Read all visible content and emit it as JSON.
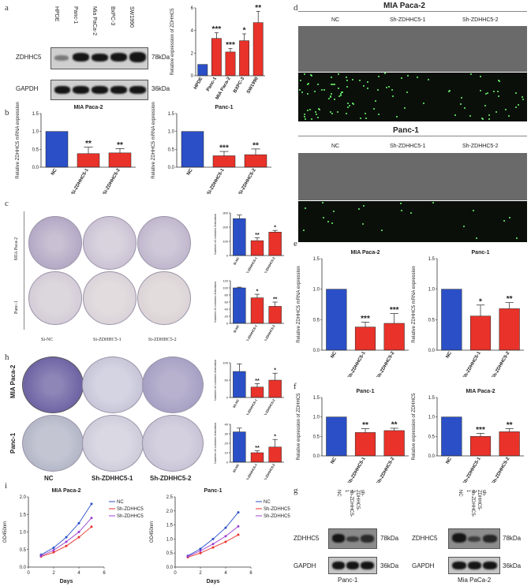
{
  "panels": {
    "a": "a",
    "b": "b",
    "c": "c",
    "d": "d",
    "e": "e",
    "f": "f",
    "g": "g",
    "h": "h",
    "i": "i"
  },
  "a": {
    "lanes": [
      "HPDE",
      "Panc-1",
      "Mia PaCa-2",
      "BxPC-3",
      "SW1990"
    ],
    "target": "ZDHHC5",
    "target_kda": "78kDa",
    "loading": "GAPDH",
    "loading_kda": "36kDa"
  },
  "d": {
    "mia_title": "MIA Paca-2",
    "panc_title": "Panc-1",
    "cols": [
      "NC",
      "Sh-ZDHHC5-1",
      "Sh-ZDHHC5-2"
    ]
  },
  "c": {
    "row1": "MIA Paca-2",
    "row2": "Panc-1",
    "cols": [
      "Si-NC",
      "Si-ZDHHC5-1",
      "Si-ZDHHC5-2"
    ]
  },
  "h": {
    "row1": "MIA Paca-2",
    "row2": "Panc-1",
    "cols": [
      "NC",
      "Sh-ZDHHC5-1",
      "Sh-ZDHHC5-2"
    ]
  },
  "g": {
    "left_lanes": [
      "NC",
      "sh-ZDHHC5-1",
      "sh-ZDHHC5-2"
    ],
    "right_lanes": [
      "NC",
      "sh-ZDHHC5-1",
      "sh-ZDHHC5-2"
    ],
    "target": "ZDHHC5",
    "target_kda": "78kDa",
    "loading": "GAPDH",
    "loading_kda": "36kDa",
    "left_caption": "Panc-1",
    "right_caption": "Mia PaCa-2"
  },
  "chart_data": [
    {
      "id": "a_bar",
      "type": "bar",
      "title": "",
      "ylabel": "Relative expression of ZDHHC5",
      "categories": [
        "HPDE",
        "Panc-1",
        "MIA Paca-2",
        "BXPC-3",
        "SW1990"
      ],
      "values": [
        1,
        3.3,
        2.1,
        3.1,
        4.7
      ],
      "errors": [
        0,
        0.5,
        0.3,
        0.6,
        1.0
      ],
      "sig": [
        "",
        "***",
        "***",
        "*",
        "**"
      ],
      "ylim": [
        0,
        6
      ],
      "yticks": [
        "0",
        "2",
        "4",
        "6"
      ],
      "colors": [
        "#2a4fc7",
        "#e8322a",
        "#e8322a",
        "#e8322a",
        "#e8322a"
      ]
    },
    {
      "id": "b1",
      "type": "bar",
      "title": "MIA Paca-2",
      "ylabel": "Relative ZDHHC5 mRNA expression",
      "categories": [
        "NC",
        "Si-ZDHHC5-1",
        "Si-ZDHHC5-2"
      ],
      "values": [
        1,
        0.38,
        0.4
      ],
      "errors": [
        0,
        0.18,
        0.12
      ],
      "sig": [
        "",
        "**",
        "**"
      ],
      "ylim": [
        0,
        1.5
      ],
      "yticks": [
        "0.0",
        "0.5",
        "1.0",
        "1.5"
      ],
      "colors": [
        "#2a4fc7",
        "#e8322a",
        "#e8322a"
      ]
    },
    {
      "id": "b2",
      "type": "bar",
      "title": "Panc-1",
      "ylabel": "Relative ZDHHC5 mRNA expression",
      "categories": [
        "NC",
        "Si-ZDHHC5-1",
        "Si-ZDHHC5-2"
      ],
      "values": [
        1,
        0.32,
        0.35
      ],
      "errors": [
        0,
        0.12,
        0.16
      ],
      "sig": [
        "",
        "***",
        "**"
      ],
      "ylim": [
        0,
        1.5
      ],
      "yticks": [
        "0.0",
        "0.5",
        "1.0",
        "1.5"
      ],
      "colors": [
        "#2a4fc7",
        "#e8322a",
        "#e8322a"
      ]
    },
    {
      "id": "c1",
      "type": "bar",
      "title": "",
      "ylabel": "Number of colonies formation",
      "categories": [
        "Si-NC",
        "Si-ZDHHC5-1",
        "Si-ZDHHC5-2"
      ],
      "values": [
        260,
        105,
        165
      ],
      "errors": [
        25,
        20,
        12
      ],
      "sig": [
        "",
        "**",
        "*"
      ],
      "ylim": [
        0,
        300
      ],
      "yticks": [
        "0",
        "100",
        "200",
        "300"
      ],
      "colors": [
        "#2a4fc7",
        "#e8322a",
        "#e8322a"
      ]
    },
    {
      "id": "c2",
      "type": "bar",
      "title": "",
      "ylabel": "Number of colonies formation",
      "categories": [
        "Si-NC",
        "Si-ZDHHC5-1",
        "Si-ZDHHC5-2"
      ],
      "values": [
        100,
        72,
        48
      ],
      "errors": [
        2,
        10,
        12
      ],
      "sig": [
        "",
        "*",
        "**"
      ],
      "ylim": [
        0,
        120
      ],
      "yticks": [
        "0",
        "20",
        "40",
        "60",
        "80",
        "100",
        "120"
      ],
      "colors": [
        "#2a4fc7",
        "#e8322a",
        "#e8322a"
      ]
    },
    {
      "id": "h1",
      "type": "bar",
      "title": "",
      "ylabel": "Number of colonies formation",
      "categories": [
        "Sh-NC",
        "Sh-ZDHHC5-1",
        "Sh-ZDHHC5-2"
      ],
      "values": [
        75,
        30,
        50
      ],
      "errors": [
        22,
        10,
        20
      ],
      "sig": [
        "",
        "**",
        "*"
      ],
      "ylim": [
        0,
        100
      ],
      "yticks": [
        "0",
        "50",
        "100"
      ],
      "colors": [
        "#2a4fc7",
        "#e8322a",
        "#e8322a"
      ]
    },
    {
      "id": "h2",
      "type": "bar",
      "title": "",
      "ylabel": "Number of colonies formation",
      "categories": [
        "Sh-NC",
        "Sh-ZDHHC5-1",
        "Sh-ZDHHC5-2"
      ],
      "values": [
        32,
        10,
        16
      ],
      "errors": [
        4,
        2,
        8
      ],
      "sig": [
        "",
        "**",
        "*"
      ],
      "ylim": [
        0,
        40
      ],
      "yticks": [
        "0",
        "10",
        "20",
        "30",
        "40"
      ],
      "colors": [
        "#2a4fc7",
        "#e8322a",
        "#e8322a"
      ]
    },
    {
      "id": "e1",
      "type": "bar",
      "title": "MIA Paca-2",
      "ylabel": "Relative ZDHHC5 mRNA expression",
      "categories": [
        "NC",
        "Sh-ZDHHC5-1",
        "Sh-ZDHHC5-2"
      ],
      "values": [
        1,
        0.38,
        0.44
      ],
      "errors": [
        0,
        0.08,
        0.16
      ],
      "sig": [
        "",
        "***",
        "***"
      ],
      "ylim": [
        0,
        1.5
      ],
      "yticks": [
        "0.0",
        "0.5",
        "1.0",
        "1.5"
      ],
      "colors": [
        "#2a4fc7",
        "#e8322a",
        "#e8322a"
      ]
    },
    {
      "id": "e2",
      "type": "bar",
      "title": "Panc-1",
      "ylabel": "Relative ZDHHC5 mRNA expression",
      "categories": [
        "NC",
        "Sh-ZDHHC5-1",
        "Sh-ZDHHC5-2"
      ],
      "values": [
        1,
        0.56,
        0.68
      ],
      "errors": [
        0,
        0.18,
        0.1
      ],
      "sig": [
        "",
        "*",
        "**"
      ],
      "ylim": [
        0,
        1.5
      ],
      "yticks": [
        "0.0",
        "0.5",
        "1.0",
        "1.5"
      ],
      "colors": [
        "#2a4fc7",
        "#e8322a",
        "#e8322a"
      ]
    },
    {
      "id": "f1",
      "type": "bar",
      "title": "Panc-1",
      "ylabel": "Relative expression of ZDHHC5",
      "categories": [
        "NC",
        "Sh-ZDHHC5-1",
        "Sh-ZDHHC5-2"
      ],
      "values": [
        1,
        0.6,
        0.65
      ],
      "errors": [
        0,
        0.1,
        0.06
      ],
      "sig": [
        "",
        "**",
        "**"
      ],
      "ylim": [
        0,
        1.5
      ],
      "yticks": [
        "0.0",
        "0.5",
        "1.0",
        "1.5"
      ],
      "colors": [
        "#2a4fc7",
        "#e8322a",
        "#e8322a"
      ]
    },
    {
      "id": "f2",
      "type": "bar",
      "title": "MIA Paca-2",
      "ylabel": "Relative expression of ZDHHC5",
      "categories": [
        "NC",
        "Sh-ZDHHC5-1",
        "Sh-ZDHHC5-2"
      ],
      "values": [
        1,
        0.5,
        0.62
      ],
      "errors": [
        0,
        0.08,
        0.08
      ],
      "sig": [
        "",
        "***",
        "**"
      ],
      "ylim": [
        0,
        1.5
      ],
      "yticks": [
        "0.0",
        "0.5",
        "1.0",
        "1.5"
      ],
      "colors": [
        "#2a4fc7",
        "#e8322a",
        "#e8322a"
      ]
    },
    {
      "id": "i1",
      "type": "line",
      "title": "MIA Paca-2",
      "xlabel": "Days",
      "ylabel": "OD450nm",
      "x": [
        1,
        2,
        3,
        4,
        5
      ],
      "xlim": [
        0,
        6
      ],
      "xticks": [
        "0",
        "2",
        "4",
        "6"
      ],
      "ylim": [
        0,
        2.0
      ],
      "yticks": [
        "0.0",
        "0.5",
        "1.0",
        "1.5",
        "2.0"
      ],
      "series": [
        {
          "name": "NC",
          "values": [
            0.35,
            0.55,
            0.85,
            1.25,
            1.8
          ],
          "color": "#2a4fc7"
        },
        {
          "name": "Sh-ZDHHC5-1",
          "values": [
            0.3,
            0.42,
            0.6,
            0.85,
            1.15
          ],
          "color": "#e8322a"
        },
        {
          "name": "Sh-ZDHHC5-2",
          "values": [
            0.32,
            0.48,
            0.72,
            1.0,
            1.4
          ],
          "color": "#9c3fd0"
        }
      ]
    },
    {
      "id": "i2",
      "type": "line",
      "title": "Panc-1",
      "xlabel": "Days",
      "ylabel": "OD450nm",
      "x": [
        1,
        2,
        3,
        4,
        5
      ],
      "xlim": [
        0,
        6
      ],
      "xticks": [
        "0",
        "2",
        "4",
        "6"
      ],
      "ylim": [
        0,
        2.5
      ],
      "yticks": [
        "0.0",
        "0.5",
        "1.0",
        "1.5",
        "2.0",
        "2.5"
      ],
      "series": [
        {
          "name": "NC",
          "values": [
            0.4,
            0.65,
            1.0,
            1.4,
            1.95
          ],
          "color": "#2a4fc7"
        },
        {
          "name": "Sh-ZDHHC5-1",
          "values": [
            0.35,
            0.5,
            0.7,
            0.9,
            1.15
          ],
          "color": "#e8322a"
        },
        {
          "name": "Sh-ZDHHC5-2",
          "values": [
            0.38,
            0.58,
            0.82,
            1.1,
            1.45
          ],
          "color": "#9c3fd0"
        }
      ]
    }
  ]
}
